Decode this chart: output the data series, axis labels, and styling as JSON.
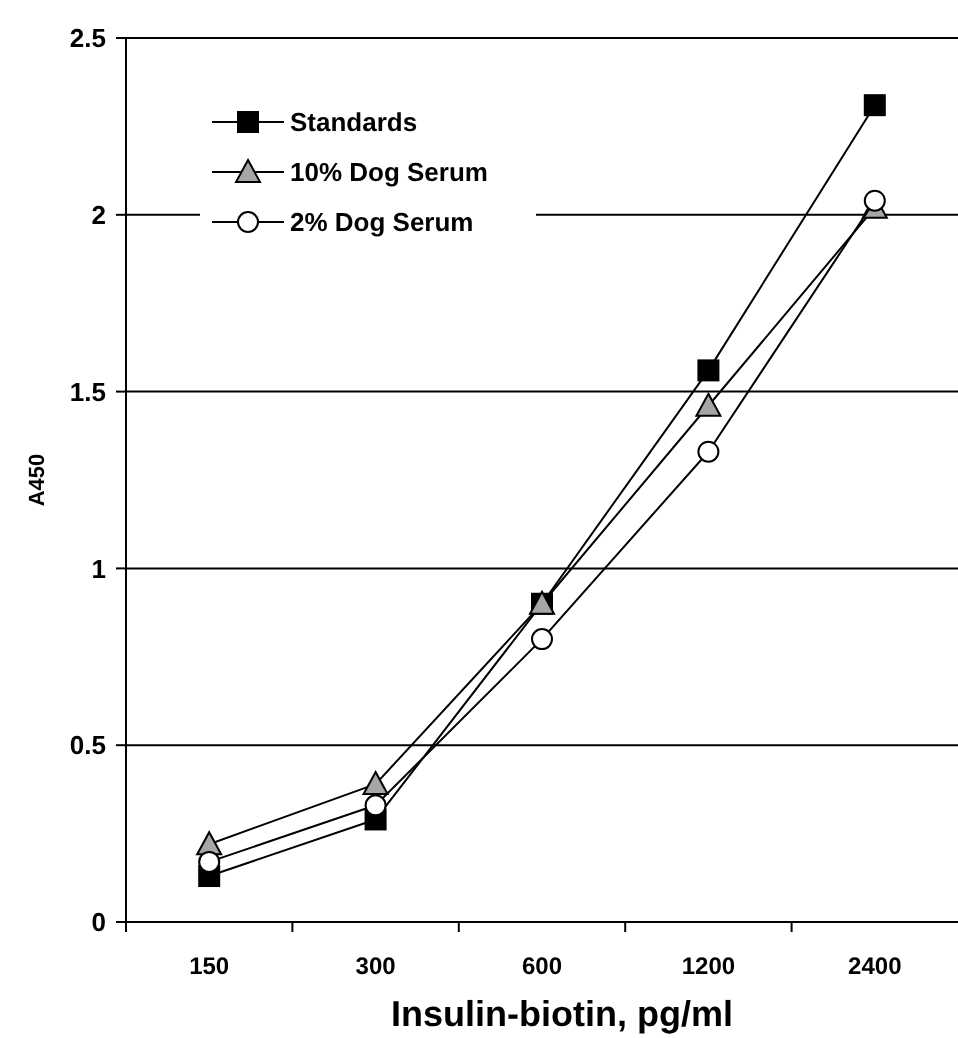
{
  "chart_data": {
    "type": "line",
    "xlabel": "Insulin-biotin, pg/ml",
    "ylabel": "A450",
    "categories": [
      "150",
      "300",
      "600",
      "1200",
      "2400"
    ],
    "series": [
      {
        "name": "Standards",
        "color": "#000000",
        "marker": "square",
        "values": [
          0.13,
          0.29,
          0.9,
          1.56,
          2.31
        ]
      },
      {
        "name": "10% Dog Serum",
        "color": "#a6a6a6",
        "marker": "triangle",
        "values": [
          0.22,
          0.39,
          0.9,
          1.46,
          2.02
        ]
      },
      {
        "name": "2% Dog Serum",
        "color": "#ffffff",
        "marker": "circle",
        "values": [
          0.17,
          0.33,
          0.8,
          1.33,
          2.04
        ]
      }
    ],
    "ylim": [
      0,
      2.5
    ],
    "yticks": [
      0,
      0.5,
      1,
      1.5,
      2,
      2.5
    ],
    "grid": "y",
    "legend": "top left",
    "line_style": "solid"
  }
}
